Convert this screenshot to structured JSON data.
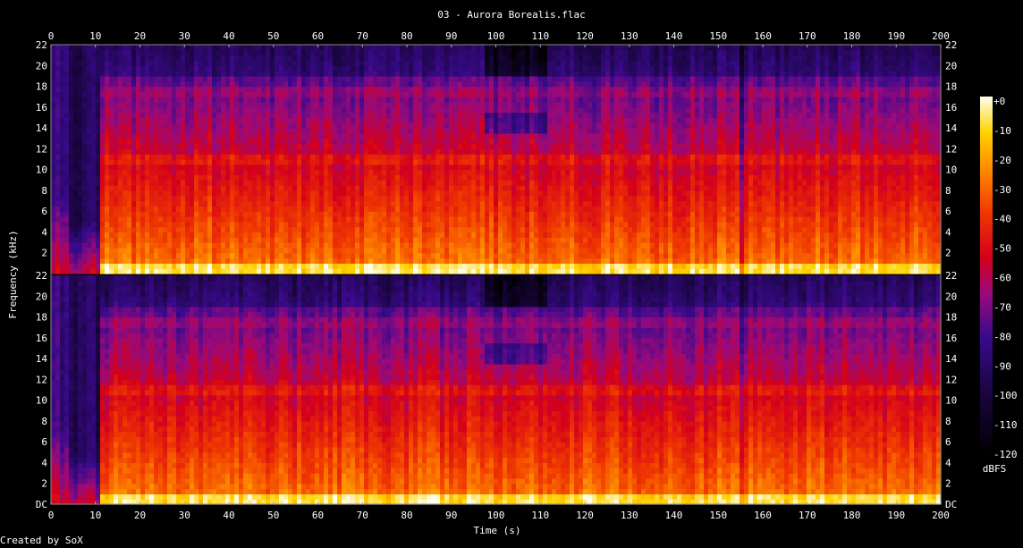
{
  "chart_data": {
    "type": "heatmap",
    "title": "03 - Aurora Borealis.flac",
    "xlabel": "Time (s)",
    "ylabel": "Frequency (kHz)",
    "xlim": [
      0,
      200
    ],
    "ylim": [
      0,
      22
    ],
    "x_ticks": [
      0,
      10,
      20,
      30,
      40,
      50,
      60,
      70,
      80,
      90,
      100,
      110,
      120,
      130,
      140,
      150,
      160,
      170,
      180,
      190,
      200
    ],
    "y_ticks_upper": [
      2,
      4,
      6,
      8,
      10,
      12,
      14,
      16,
      18,
      20,
      22
    ],
    "y_ticks_lower": [
      "DC",
      "2",
      "4",
      "6",
      "8",
      "10",
      "12",
      "14",
      "16",
      "18",
      "20",
      "22"
    ],
    "channels": 2,
    "colorbar": {
      "label": "dBFS",
      "ticks": [
        "+0",
        "-10",
        "-20",
        "-30",
        "-40",
        "-50",
        "-60",
        "-70",
        "-80",
        "-90",
        "-100",
        "-110",
        "-120"
      ],
      "range": [
        -120,
        0
      ]
    },
    "colors": {
      "low": "#000000",
      "mid_low": "#3a0a8c",
      "mid": "#d4001a",
      "mid_high": "#ff6a00",
      "high": "#ffffe0"
    }
  },
  "footer": {
    "credit": "Created by SoX"
  }
}
